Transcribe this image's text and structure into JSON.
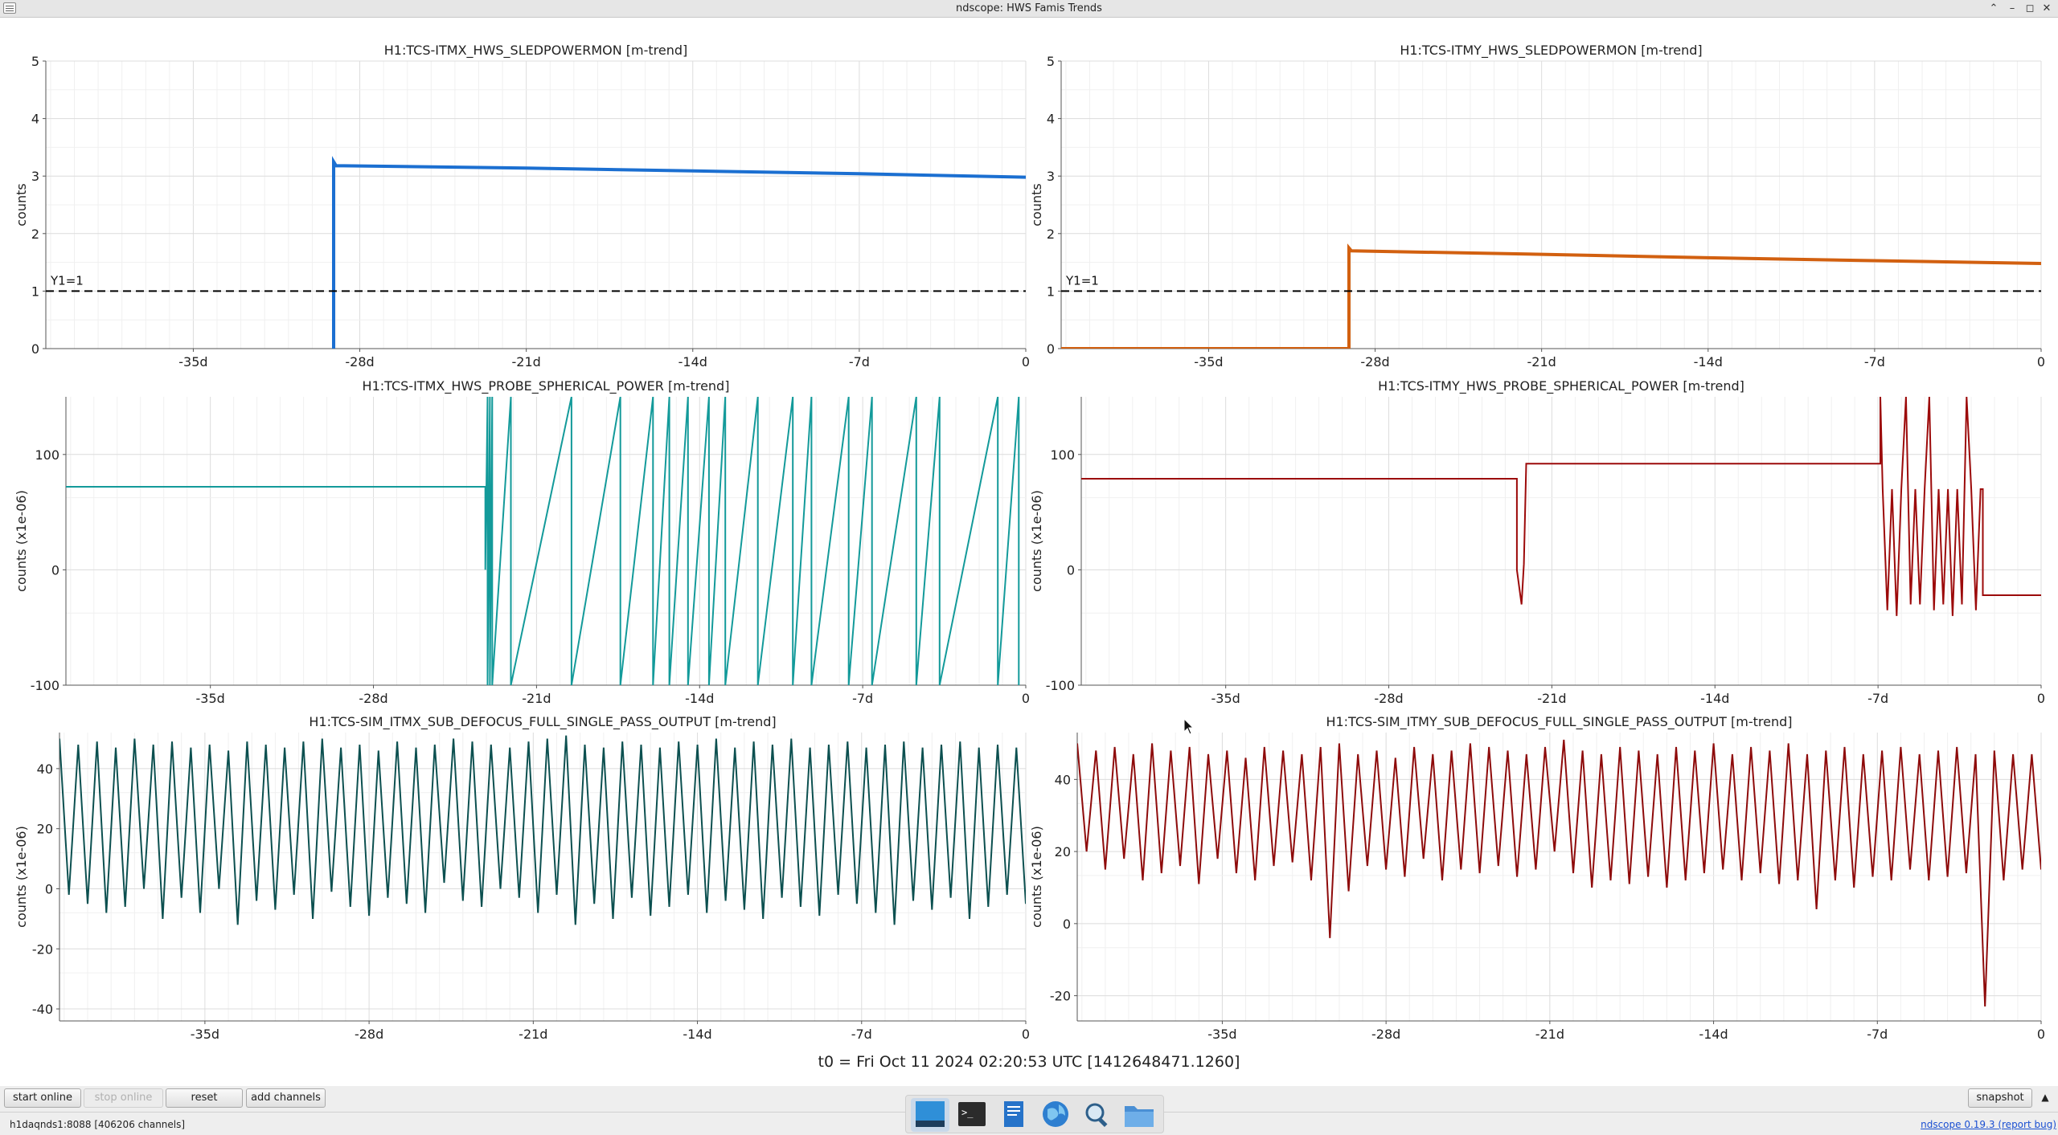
{
  "window": {
    "title": "ndscope: HWS Famis Trends"
  },
  "t0_label": "t0 = Fri Oct 11 2024 02:20:53 UTC [1412648471.1260]",
  "toolbar": {
    "start_online": "start online",
    "stop_online": "stop online",
    "reset": "reset",
    "add_channels": "add channels",
    "snapshot": "snapshot"
  },
  "status": {
    "server": "h1daqnds1:8088  [406206 channels]",
    "version": "ndscope 0.19.3",
    "report": "(report bug)"
  },
  "taskbar": [
    "desktop-icon",
    "terminal-icon",
    "text-editor-icon",
    "web-browser-icon",
    "search-icon",
    "file-manager-icon"
  ],
  "chart_data": [
    {
      "type": "line",
      "title": "H1:TCS-ITMX_HWS_SLEDPOWERMON [m-trend]",
      "ylabel": "counts",
      "xticks": [
        "-35d",
        "-28d",
        "-21d",
        "-14d",
        "-7d",
        "0"
      ],
      "yticks": [
        "0",
        "1",
        "2",
        "3",
        "4",
        "5"
      ],
      "xlim": [
        -41.2,
        0
      ],
      "ylim": [
        0,
        5
      ],
      "color": "#1b6fd1",
      "cursor_label": "Y1=1",
      "cursor_y": 1,
      "series": [
        {
          "x": [
            -29.1,
            -29.1,
            -29.0,
            -21,
            -14,
            -7,
            0
          ],
          "y": [
            0,
            3.25,
            3.18,
            3.14,
            3.09,
            3.04,
            2.98
          ]
        }
      ]
    },
    {
      "type": "line",
      "title": "H1:TCS-ITMY_HWS_SLEDPOWERMON [m-trend]",
      "ylabel": "counts",
      "xticks": [
        "-35d",
        "-28d",
        "-21d",
        "-14d",
        "-7d",
        "0"
      ],
      "yticks": [
        "0",
        "1",
        "2",
        "3",
        "4",
        "5"
      ],
      "xlim": [
        -41.2,
        0
      ],
      "ylim": [
        0,
        5
      ],
      "color": "#d26010",
      "cursor_label": "Y1=1",
      "cursor_y": 1,
      "series": [
        {
          "x": [
            -41.2,
            -29.1,
            -29.1,
            -29.0,
            -21,
            -14,
            -7,
            0
          ],
          "y": [
            0,
            0,
            1.75,
            1.7,
            1.64,
            1.58,
            1.53,
            1.48
          ]
        }
      ]
    },
    {
      "type": "line",
      "title": "H1:TCS-ITMX_HWS_PROBE_SPHERICAL_POWER [m-trend]",
      "ylabel": "counts (x1e-06)",
      "xticks": [
        "-35d",
        "-28d",
        "-21d",
        "-14d",
        "-7d",
        "0"
      ],
      "yticks": [
        "-100",
        "0",
        "100"
      ],
      "xlim": [
        -41.2,
        0
      ],
      "ylim": [
        -100,
        150
      ],
      "color": "#139a9a",
      "series": [
        {
          "x": [
            -41.2,
            -23.2,
            -23.2,
            -23.1,
            -23.1,
            -23.0,
            -23.0,
            -22.9,
            -22.9,
            -22.1,
            -22.1,
            -19.5,
            -19.5,
            -17.4,
            -17.4,
            -16.0,
            -16.0,
            -15.3,
            -15.3,
            -14.5,
            -14.5,
            -13.6,
            -13.6,
            -12.9,
            -12.9,
            -11.5,
            -11.5,
            -10.0,
            -10.0,
            -9.2,
            -9.2,
            -7.6,
            -7.6,
            -6.6,
            -6.6,
            -4.7,
            -4.7,
            -3.7,
            -3.7,
            -1.2,
            -1.2,
            -0.3,
            -0.3
          ],
          "y": [
            72,
            72,
            0,
            150,
            -100,
            150,
            -100,
            150,
            -100,
            150,
            -100,
            150,
            -100,
            150,
            -100,
            150,
            -100,
            150,
            -100,
            150,
            -100,
            150,
            -100,
            150,
            -100,
            150,
            -100,
            150,
            -100,
            150,
            -100,
            150,
            -100,
            150,
            -100,
            150,
            -100,
            150,
            -100,
            150,
            -100,
            150,
            -100
          ]
        }
      ]
    },
    {
      "type": "line",
      "title": "H1:TCS-ITMY_HWS_PROBE_SPHERICAL_POWER [m-trend]",
      "ylabel": "counts (x1e-06)",
      "xticks": [
        "-35d",
        "-28d",
        "-21d",
        "-14d",
        "-7d",
        "0"
      ],
      "yticks": [
        "-100",
        "0",
        "100"
      ],
      "xlim": [
        -41.2,
        0
      ],
      "ylim": [
        -100,
        150
      ],
      "color": "#9c0a0a",
      "series": [
        {
          "x": [
            -41.2,
            -22.5,
            -22.5,
            -22.3,
            -22.2,
            -22.1,
            -22.0,
            -6.9,
            -6.9,
            -6.8,
            -6.6,
            -6.4,
            -6.2,
            -6.0,
            -5.8,
            -5.6,
            -5.4,
            -5.2,
            -5.0,
            -4.8,
            -4.6,
            -4.4,
            -4.2,
            -4.0,
            -3.8,
            -3.6,
            -3.4,
            -3.2,
            -3.0,
            -2.8,
            -2.6,
            -2.5,
            -2.5,
            0
          ],
          "y": [
            79,
            79,
            0,
            -30,
            5,
            92,
            92,
            92,
            150,
            70,
            -35,
            70,
            -40,
            70,
            150,
            -30,
            70,
            -30,
            70,
            150,
            -35,
            70,
            -30,
            70,
            -40,
            70,
            -30,
            150,
            70,
            -35,
            70,
            70,
            -22,
            -22
          ]
        }
      ]
    },
    {
      "type": "line",
      "title": "H1:TCS-SIM_ITMX_SUB_DEFOCUS_FULL_SINGLE_PASS_OUTPUT [m-trend]",
      "ylabel": "counts (x1e-06)",
      "xticks": [
        "-35d",
        "-28d",
        "-21d",
        "-14d",
        "-7d",
        "0"
      ],
      "yticks": [
        "-40",
        "-20",
        "0",
        "20",
        "40"
      ],
      "xlim": [
        -41.2,
        0
      ],
      "ylim": [
        -44,
        52
      ],
      "color": "#0c5050",
      "series": [
        {
          "x": [
            -41.2,
            -40.8,
            -40.4,
            -40.0,
            -39.6,
            -39.2,
            -38.8,
            -38.4,
            -38.0,
            -37.6,
            -37.2,
            -36.8,
            -36.4,
            -36.0,
            -35.6,
            -35.2,
            -34.8,
            -34.4,
            -34.0,
            -33.6,
            -33.2,
            -32.8,
            -32.4,
            -32.0,
            -31.6,
            -31.2,
            -30.8,
            -30.4,
            -30.0,
            -29.6,
            -29.2,
            -28.8,
            -28.4,
            -28.0,
            -27.6,
            -27.2,
            -26.8,
            -26.4,
            -26.0,
            -25.6,
            -25.2,
            -24.8,
            -24.4,
            -24.0,
            -23.6,
            -23.2,
            -22.8,
            -22.4,
            -22.0,
            -21.6,
            -21.2,
            -20.8,
            -20.4,
            -20.0,
            -19.6,
            -19.2,
            -18.8,
            -18.4,
            -18.0,
            -17.6,
            -17.2,
            -16.8,
            -16.4,
            -16.0,
            -15.6,
            -15.2,
            -14.8,
            -14.4,
            -14.0,
            -13.6,
            -13.2,
            -12.8,
            -12.4,
            -12.0,
            -11.6,
            -11.2,
            -10.8,
            -10.4,
            -10.0,
            -9.6,
            -9.2,
            -8.8,
            -8.4,
            -8.0,
            -7.6,
            -7.2,
            -6.8,
            -6.4,
            -6.0,
            -5.6,
            -5.2,
            -4.8,
            -4.4,
            -4.0,
            -3.6,
            -3.2,
            -2.8,
            -2.4,
            -2.0,
            -1.6,
            -1.2,
            -0.8,
            -0.4,
            0
          ],
          "y": [
            50,
            -2,
            48,
            -5,
            49,
            -8,
            47,
            -6,
            50,
            0,
            48,
            -10,
            49,
            -3,
            47,
            -8,
            48,
            0,
            46,
            -12,
            49,
            -4,
            48,
            -7,
            47,
            -2,
            49,
            -10,
            50,
            -1,
            47,
            -6,
            48,
            -9,
            46,
            -3,
            49,
            -5,
            47,
            -8,
            48,
            2,
            50,
            -4,
            49,
            -6,
            48,
            0,
            47,
            -3,
            49,
            -8,
            50,
            -2,
            51,
            -12,
            48,
            -5,
            47,
            -10,
            49,
            -3,
            48,
            -9,
            47,
            -6,
            49,
            -2,
            48,
            -8,
            50,
            -4,
            47,
            -7,
            49,
            -10,
            48,
            -3,
            50,
            -6,
            47,
            -9,
            48,
            -2,
            49,
            -5,
            47,
            -8,
            48,
            -12,
            49,
            -4,
            47,
            -7,
            48,
            -3,
            49,
            -10,
            47,
            -6,
            48,
            -2,
            47,
            -5
          ]
        }
      ]
    },
    {
      "type": "line",
      "title": "H1:TCS-SIM_ITMY_SUB_DEFOCUS_FULL_SINGLE_PASS_OUTPUT [m-trend]",
      "ylabel": "counts (x1e-06)",
      "xticks": [
        "-35d",
        "-28d",
        "-21d",
        "-14d",
        "-7d",
        "0"
      ],
      "yticks": [
        "-20",
        "0",
        "20",
        "40"
      ],
      "xlim": [
        -41.2,
        0
      ],
      "ylim": [
        -27,
        53
      ],
      "color": "#8e0b0b",
      "series": [
        {
          "x": [
            -41.2,
            -40.8,
            -40.4,
            -40.0,
            -39.6,
            -39.2,
            -38.8,
            -38.4,
            -38.0,
            -37.6,
            -37.2,
            -36.8,
            -36.4,
            -36.0,
            -35.6,
            -35.2,
            -34.8,
            -34.4,
            -34.0,
            -33.6,
            -33.2,
            -32.8,
            -32.4,
            -32.0,
            -31.6,
            -31.2,
            -30.8,
            -30.4,
            -30.0,
            -29.6,
            -29.2,
            -28.8,
            -28.4,
            -28.0,
            -27.6,
            -27.2,
            -26.8,
            -26.4,
            -26.0,
            -25.6,
            -25.2,
            -24.8,
            -24.4,
            -24.0,
            -23.6,
            -23.2,
            -22.8,
            -22.4,
            -22.0,
            -21.6,
            -21.2,
            -20.8,
            -20.4,
            -20.0,
            -19.6,
            -19.2,
            -18.8,
            -18.4,
            -18.0,
            -17.6,
            -17.2,
            -16.8,
            -16.4,
            -16.0,
            -15.6,
            -15.2,
            -14.8,
            -14.4,
            -14.0,
            -13.6,
            -13.2,
            -12.8,
            -12.4,
            -12.0,
            -11.6,
            -11.2,
            -10.8,
            -10.4,
            -10.0,
            -9.6,
            -9.2,
            -8.8,
            -8.4,
            -8.0,
            -7.6,
            -7.2,
            -6.8,
            -6.4,
            -6.0,
            -5.6,
            -5.2,
            -4.8,
            -4.4,
            -4.0,
            -3.6,
            -3.2,
            -2.8,
            -2.4,
            -2.0,
            -1.6,
            -1.2,
            -0.8,
            -0.4,
            0
          ],
          "y": [
            50,
            20,
            48,
            15,
            49,
            18,
            47,
            12,
            50,
            14,
            48,
            16,
            49,
            11,
            47,
            18,
            48,
            14,
            46,
            12,
            49,
            16,
            48,
            17,
            47,
            12,
            49,
            -4,
            50,
            9,
            47,
            16,
            48,
            15,
            46,
            13,
            49,
            18,
            47,
            12,
            48,
            15,
            50,
            14,
            49,
            16,
            48,
            13,
            47,
            15,
            49,
            20,
            51,
            14,
            48,
            10,
            47,
            12,
            49,
            11,
            48,
            13,
            47,
            10,
            49,
            12,
            48,
            14,
            50,
            15,
            47,
            12,
            49,
            14,
            48,
            11,
            50,
            12,
            47,
            4,
            48,
            12,
            49,
            10,
            47,
            13,
            48,
            12,
            49,
            15,
            47,
            12,
            48,
            13,
            49,
            14,
            47,
            -23,
            48,
            12,
            47,
            15,
            47,
            15
          ]
        }
      ]
    }
  ]
}
